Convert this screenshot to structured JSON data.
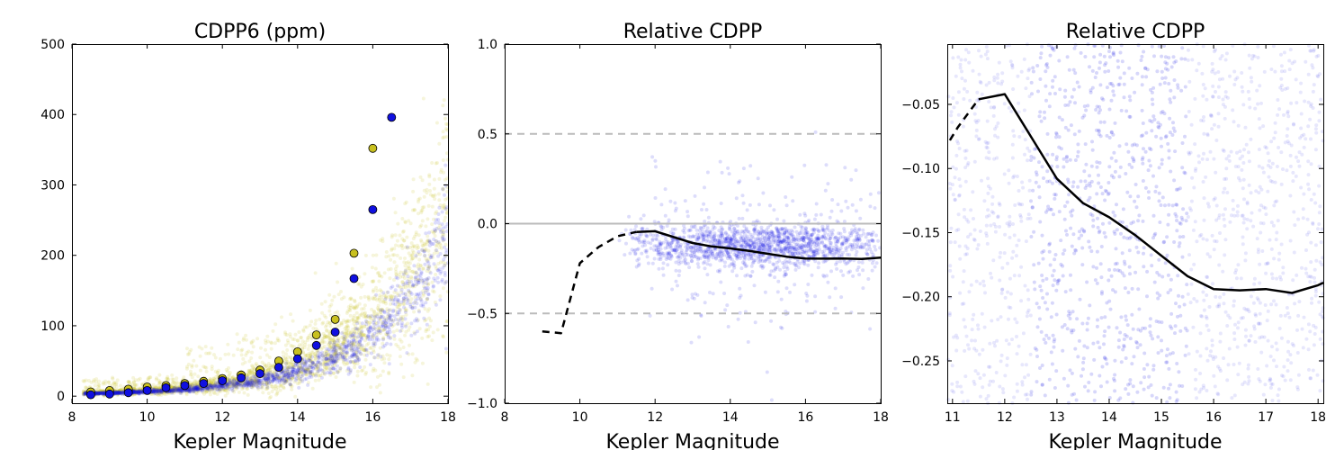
{
  "chart_data": [
    {
      "type": "scatter",
      "title": "CDPP6 (ppm)",
      "xlabel": "Kepler Magnitude",
      "ylabel": "",
      "xlim": [
        8,
        18
      ],
      "ylim": [
        -10,
        500
      ],
      "xticks": [
        8,
        10,
        12,
        14,
        16,
        18
      ],
      "yticks": [
        0,
        100,
        200,
        300,
        400,
        500
      ],
      "xtick_labels": [
        "8",
        "10",
        "12",
        "14",
        "16",
        "18"
      ],
      "ytick_labels": [
        "0",
        "100",
        "200",
        "300",
        "400",
        "500"
      ],
      "grid": false,
      "colors": {
        "series_a": "#c8c020",
        "series_b": "#1010e0",
        "marker_edge": "#000000"
      },
      "series": [
        {
          "marker": "circle",
          "color": "#c8c020",
          "x": [
            8.5,
            9.0,
            9.5,
            10.0,
            10.5,
            11.0,
            11.5,
            12.0,
            12.5,
            13.0,
            13.5,
            14.0,
            14.5,
            15.0,
            15.5,
            16.0
          ],
          "y": [
            6,
            8,
            10,
            13,
            15,
            18,
            21,
            25,
            30,
            37,
            50,
            63,
            87,
            109,
            203,
            352
          ]
        },
        {
          "marker": "circle",
          "color": "#1010e0",
          "x": [
            8.5,
            9.0,
            9.5,
            10.0,
            10.5,
            11.0,
            11.5,
            12.0,
            12.5,
            13.0,
            13.5,
            14.0,
            14.5,
            15.0,
            15.5,
            16.0,
            16.5
          ],
          "y": [
            2,
            3,
            5,
            8,
            12,
            15,
            18,
            22,
            26,
            32,
            41,
            53,
            72,
            91,
            167,
            265,
            396
          ]
        }
      ]
    },
    {
      "type": "line",
      "title": "Relative CDPP",
      "xlabel": "Kepler Magnitude",
      "ylabel": "",
      "xlim": [
        8,
        18
      ],
      "ylim": [
        -1.0,
        1.0
      ],
      "xticks": [
        8,
        10,
        12,
        14,
        16,
        18
      ],
      "yticks": [
        -1.0,
        -0.5,
        0.0,
        0.5,
        1.0
      ],
      "xtick_labels": [
        "8",
        "10",
        "12",
        "14",
        "16",
        "18"
      ],
      "ytick_labels": [
        "−1.0",
        "−0.5",
        "0.0",
        "0.5",
        "1.0"
      ],
      "grid": false,
      "reference_lines": [
        {
          "y": 0.5,
          "style": "dashed",
          "color": "#bbbbbb"
        },
        {
          "y": 0.0,
          "style": "solid",
          "color": "#bbbbbb"
        },
        {
          "y": -0.5,
          "style": "dashed",
          "color": "#bbbbbb"
        }
      ],
      "series": [
        {
          "style": "dashed",
          "color": "#000000",
          "x": [
            9.0,
            9.5,
            10.0,
            10.5,
            11.0,
            11.5
          ],
          "y": [
            -0.6,
            -0.61,
            -0.22,
            -0.13,
            -0.07,
            -0.046
          ]
        },
        {
          "style": "solid",
          "color": "#000000",
          "x": [
            11.5,
            12.0,
            12.5,
            13.0,
            13.5,
            14.0,
            14.5,
            15.0,
            15.5,
            16.0,
            16.5,
            17.0,
            17.5,
            18.0
          ],
          "y": [
            -0.046,
            -0.042,
            -0.075,
            -0.108,
            -0.127,
            -0.138,
            -0.152,
            -0.168,
            -0.184,
            -0.194,
            -0.195,
            -0.194,
            -0.197,
            -0.189
          ]
        }
      ]
    },
    {
      "type": "line",
      "title": "Relative CDPP",
      "xlabel": "Kepler Magnitude",
      "ylabel": "",
      "xlim": [
        10.9,
        18.1
      ],
      "ylim": [
        -0.283,
        -0.003
      ],
      "xticks": [
        11,
        12,
        13,
        14,
        15,
        16,
        17,
        18
      ],
      "yticks": [
        -0.25,
        -0.2,
        -0.15,
        -0.1,
        -0.05
      ],
      "xtick_labels": [
        "11",
        "12",
        "13",
        "14",
        "15",
        "16",
        "17",
        "18"
      ],
      "ytick_labels": [
        "−0.25",
        "−0.20",
        "−0.15",
        "−0.10",
        "−0.05"
      ],
      "grid": false,
      "series": [
        {
          "style": "dashed",
          "color": "#000000",
          "x": [
            10.95,
            11.1,
            11.5
          ],
          "y": [
            -0.078,
            -0.068,
            -0.046
          ]
        },
        {
          "style": "solid",
          "color": "#000000",
          "x": [
            11.5,
            12.0,
            12.5,
            13.0,
            13.5,
            14.0,
            14.5,
            15.0,
            15.5,
            16.0,
            16.5,
            17.0,
            17.5,
            18.0,
            18.1
          ],
          "y": [
            -0.046,
            -0.042,
            -0.075,
            -0.108,
            -0.127,
            -0.138,
            -0.152,
            -0.168,
            -0.184,
            -0.194,
            -0.195,
            -0.194,
            -0.197,
            -0.191,
            -0.189
          ]
        }
      ]
    }
  ]
}
